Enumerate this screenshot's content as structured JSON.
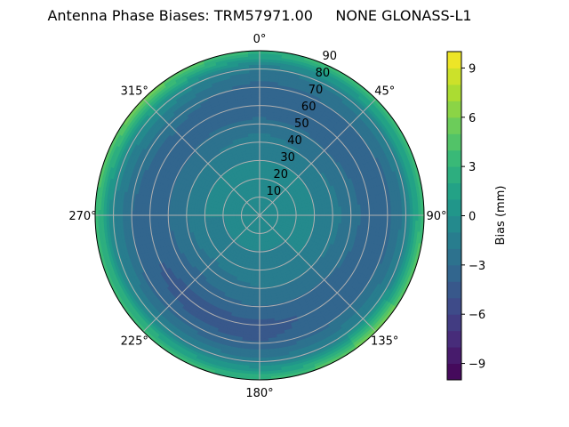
{
  "chart_data": {
    "type": "heatmap",
    "subtype": "polar-contour",
    "title": "Antenna Phase Biases: TRM57971.00     NONE GLONASS-L1",
    "angular_tick_labels": [
      "0°",
      "45°",
      "90°",
      "135°",
      "180°",
      "225°",
      "270°",
      "315°"
    ],
    "angular_direction": "clockwise",
    "zero_location": "north",
    "radial_tick_labels": [
      "10",
      "20",
      "30",
      "40",
      "50",
      "60",
      "70",
      "80",
      "90"
    ],
    "radial_range": [
      0,
      90
    ],
    "grid": true,
    "azimuths": [
      0,
      45,
      90,
      135,
      180,
      225,
      270,
      315
    ],
    "zenith": [
      0,
      10,
      20,
      30,
      40,
      50,
      60,
      70,
      80,
      90
    ],
    "values": [
      [
        -0.5,
        -0.5,
        -0.5,
        -1,
        -1.5,
        -2.5,
        -4,
        -3.5,
        -2,
        3
      ],
      [
        -0.5,
        -0.5,
        -0.5,
        -1,
        -2,
        -3,
        -3.5,
        -3,
        -1.5,
        4
      ],
      [
        -0.5,
        -0.5,
        -0.5,
        -1,
        -1.5,
        -2.5,
        -3.5,
        -3.5,
        -1.5,
        4
      ],
      [
        -0.5,
        -0.5,
        -1,
        -1,
        -2,
        -3,
        -3.5,
        -3,
        -1,
        6
      ],
      [
        -0.5,
        -0.5,
        -1,
        -1.5,
        -2,
        -3,
        -4.5,
        -4,
        -1.5,
        3
      ],
      [
        -0.5,
        -0.5,
        -1,
        -1.5,
        -2.5,
        -3.5,
        -4.5,
        -3.5,
        -1,
        4
      ],
      [
        -0.5,
        -0.5,
        -1,
        -1,
        -2,
        -3,
        -3.5,
        -3,
        -1,
        4
      ],
      [
        -0.5,
        -0.5,
        -0.5,
        -1,
        -2,
        -3,
        -3.5,
        -2.5,
        0,
        6
      ]
    ],
    "colorbar": {
      "label": "Bias (mm)",
      "range": [
        -10,
        10
      ],
      "levels_step": 1,
      "tick_values": [
        -9,
        -6,
        -3,
        0,
        3,
        6,
        9
      ],
      "tick_labels": [
        "−9",
        "−6",
        "−3",
        "0",
        "3",
        "6",
        "9"
      ],
      "colormap": "viridis"
    }
  }
}
